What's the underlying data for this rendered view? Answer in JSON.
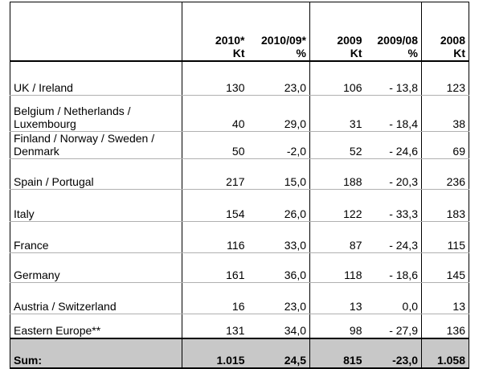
{
  "table": {
    "headers": [
      {
        "line1": "",
        "line2": ""
      },
      {
        "line1": "2010*",
        "line2": "Kt"
      },
      {
        "line1": "2010/09*",
        "line2": "%"
      },
      {
        "line1": "2009",
        "line2": "Kt"
      },
      {
        "line1": "2009/08",
        "line2": "%"
      },
      {
        "line1": "2008",
        "line2": "Kt"
      }
    ],
    "rows": [
      {
        "region": "UK / Ireland",
        "kt2010": "130",
        "pct1009": "23,0",
        "kt2009": "106",
        "pct0908": "- 13,8",
        "kt2008": "123"
      },
      {
        "region": "Belgium / Netherlands / Luxembourg",
        "kt2010": "40",
        "pct1009": "29,0",
        "kt2009": "31",
        "pct0908": "- 18,4",
        "kt2008": "38"
      },
      {
        "region": "Finland / Norway / Sweden / Denmark",
        "kt2010": "50",
        "pct1009": "-2,0",
        "kt2009": "52",
        "pct0908": "- 24,6",
        "kt2008": "69"
      },
      {
        "region": "Spain / Portugal",
        "kt2010": "217",
        "pct1009": "15,0",
        "kt2009": "188",
        "pct0908": "- 20,3",
        "kt2008": "236"
      },
      {
        "region": "Italy",
        "kt2010": "154",
        "pct1009": "26,0",
        "kt2009": "122",
        "pct0908": "- 33,3",
        "kt2008": "183"
      },
      {
        "region": "France",
        "kt2010": "116",
        "pct1009": "33,0",
        "kt2009": "87",
        "pct0908": "- 24,3",
        "kt2008": "115"
      },
      {
        "region": "Germany",
        "kt2010": "161",
        "pct1009": "36,0",
        "kt2009": "118",
        "pct0908": "- 18,6",
        "kt2008": "145"
      },
      {
        "region": "Austria / Switzerland",
        "kt2010": "16",
        "pct1009": "23,0",
        "kt2009": "13",
        "pct0908": "0,0",
        "kt2008": "13"
      },
      {
        "region": "Eastern Europe**",
        "kt2010": "131",
        "pct1009": "34,0",
        "kt2009": "98",
        "pct0908": "- 27,9",
        "kt2008": "136"
      }
    ],
    "sum": {
      "region": "Sum:",
      "kt2010": "1.015",
      "pct1009": "24,5",
      "kt2009": "815",
      "pct0908": "-23,0",
      "kt2008": "1.058"
    }
  }
}
